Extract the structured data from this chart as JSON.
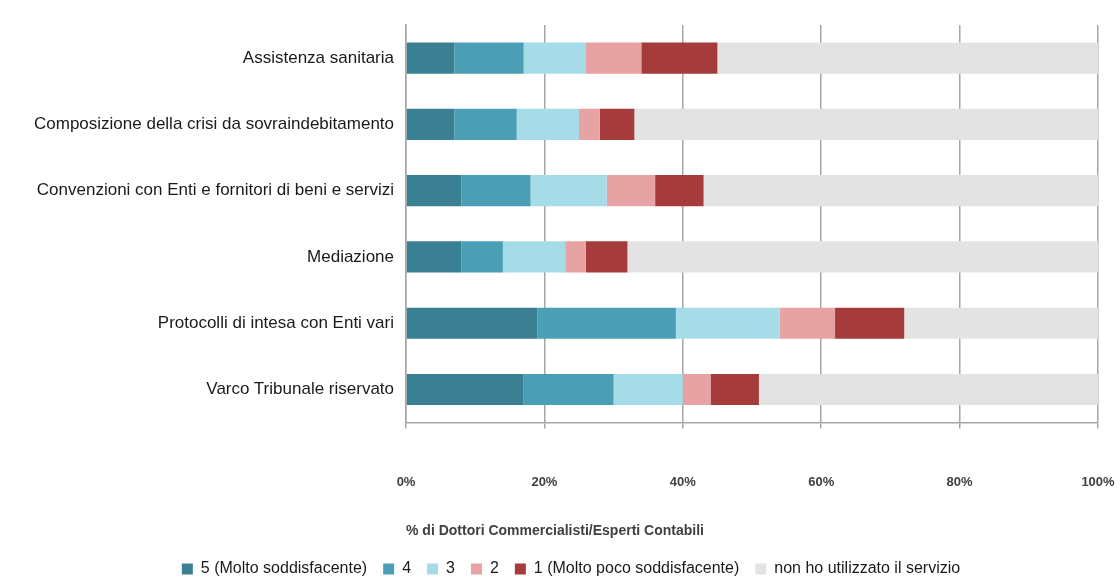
{
  "chart_data": {
    "type": "bar",
    "orientation": "horizontal",
    "stacked": true,
    "xlabel": "% di Dottori Commercialisti/Esperti Contabili",
    "categories": [
      "Assistenza sanitaria",
      "Composizione della crisi da sovraindebitamento",
      "Convenzioni con Enti e fornitori di beni e servizi",
      "Mediazione",
      "Protocolli di intesa con Enti vari",
      "Varco Tribunale riservato"
    ],
    "series": [
      {
        "name": "5 (Molto soddisfacente)",
        "color": "#3b7f93",
        "values": [
          7,
          7,
          8,
          8,
          19,
          17
        ]
      },
      {
        "name": "4",
        "color": "#4b9fb5",
        "values": [
          10,
          9,
          10,
          6,
          20,
          13
        ]
      },
      {
        "name": "3",
        "color": "#a6dce8",
        "values": [
          9,
          9,
          11,
          9,
          15,
          10
        ]
      },
      {
        "name": "2",
        "color": "#e7a3a3",
        "values": [
          8,
          3,
          7,
          3,
          8,
          4
        ]
      },
      {
        "name": "1 (Molto poco soddisfacente)",
        "color": "#a63b3b",
        "values": [
          11,
          5,
          7,
          6,
          10,
          7
        ]
      },
      {
        "name": "non ho utilizzato il servizio",
        "color": "#e3e3e3",
        "values": [
          55,
          67,
          57,
          68,
          28,
          49
        ]
      }
    ],
    "xlim": [
      0,
      100
    ],
    "xticks": [
      {
        "value": 0,
        "label": "0%"
      },
      {
        "value": 20,
        "label": "20%"
      },
      {
        "value": 40,
        "label": "40%"
      },
      {
        "value": 60,
        "label": "60%"
      },
      {
        "value": 80,
        "label": "80%"
      },
      {
        "value": 100,
        "label": "100%"
      }
    ],
    "grid": "x",
    "legend": "bottom"
  }
}
